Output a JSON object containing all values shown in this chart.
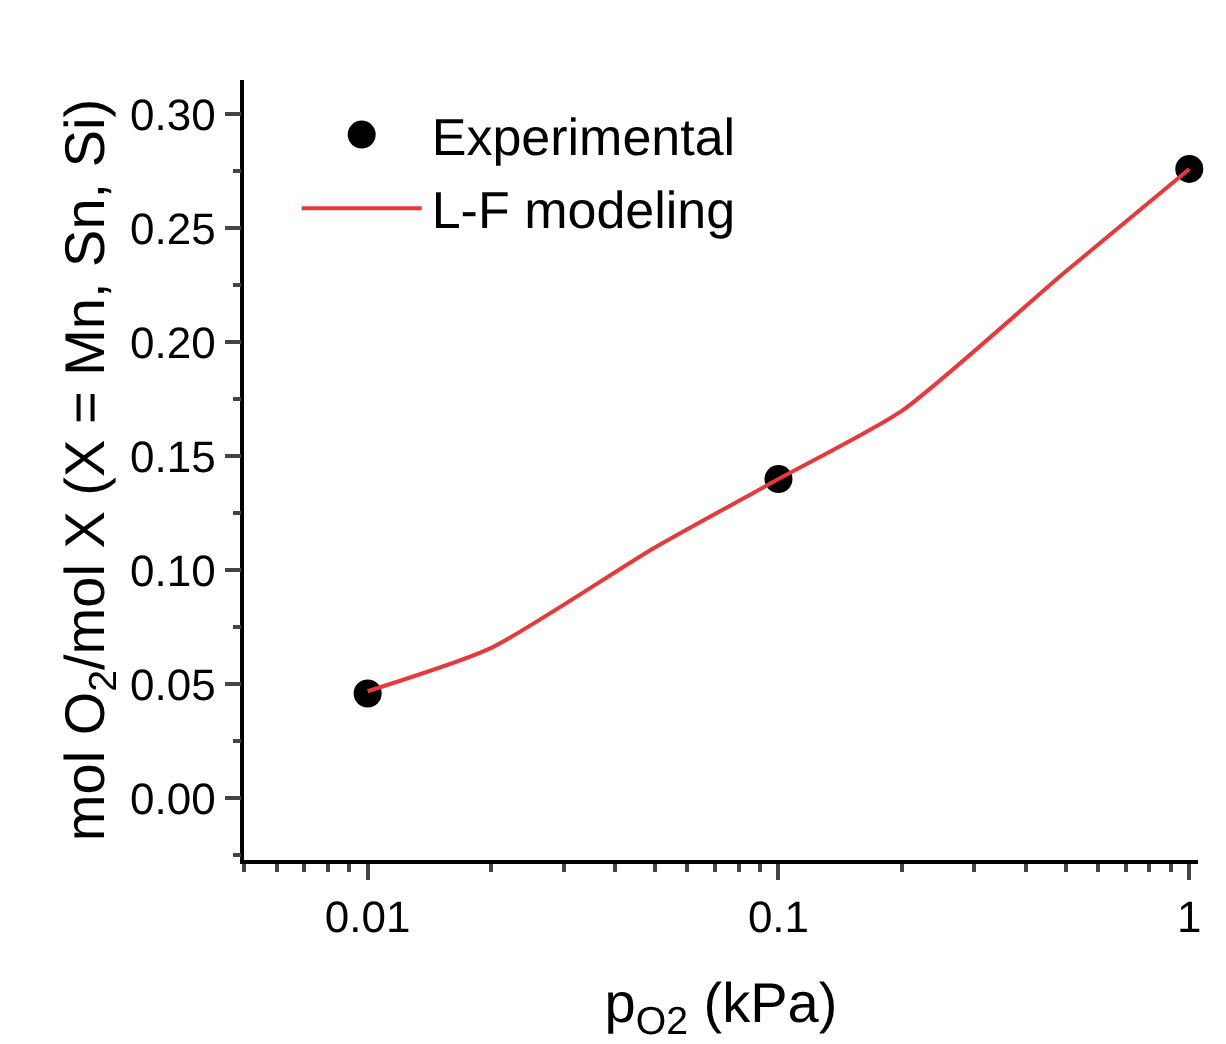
{
  "chart_data": {
    "type": "scatter",
    "xlabel": "p$_{O2}$ (kPa)",
    "ylabel": "mol O$_{2}$/mol X (X = Mn, Sn, Si)",
    "log": "x",
    "xlim": [
      0.005,
      1.05
    ],
    "xticks": [
      0.01,
      0.1,
      1
    ],
    "ylim": [
      -0.027,
      0.315
    ],
    "yticks": [
      {
        "value": 0,
        "label": "0.00"
      },
      {
        "value": 0.05,
        "label": "0.05"
      },
      {
        "value": 0.1,
        "label": "0.10"
      },
      {
        "value": 0.15,
        "label": "0.15"
      },
      {
        "value": 0.2,
        "label": "0.20"
      },
      {
        "value": 0.25,
        "label": "0.25"
      },
      {
        "value": 0.3,
        "label": "0.30"
      }
    ],
    "grid": false,
    "legend": "top left",
    "series": [
      {
        "name": "Experimental",
        "type": "scatter",
        "marker": "circle",
        "color": "#000000",
        "x": [
          0.01,
          0.1,
          1
        ],
        "values": [
          0.046,
          0.14,
          0.276
        ]
      },
      {
        "name": "L-F modeling",
        "type": "line",
        "marker": "none",
        "color": "#e8383a",
        "x": [
          0.01,
          0.02,
          0.05,
          0.1,
          0.2,
          0.5,
          1
        ],
        "values": [
          0.047,
          0.066,
          0.11,
          0.14,
          0.17,
          0.231,
          0.276
        ]
      }
    ]
  }
}
